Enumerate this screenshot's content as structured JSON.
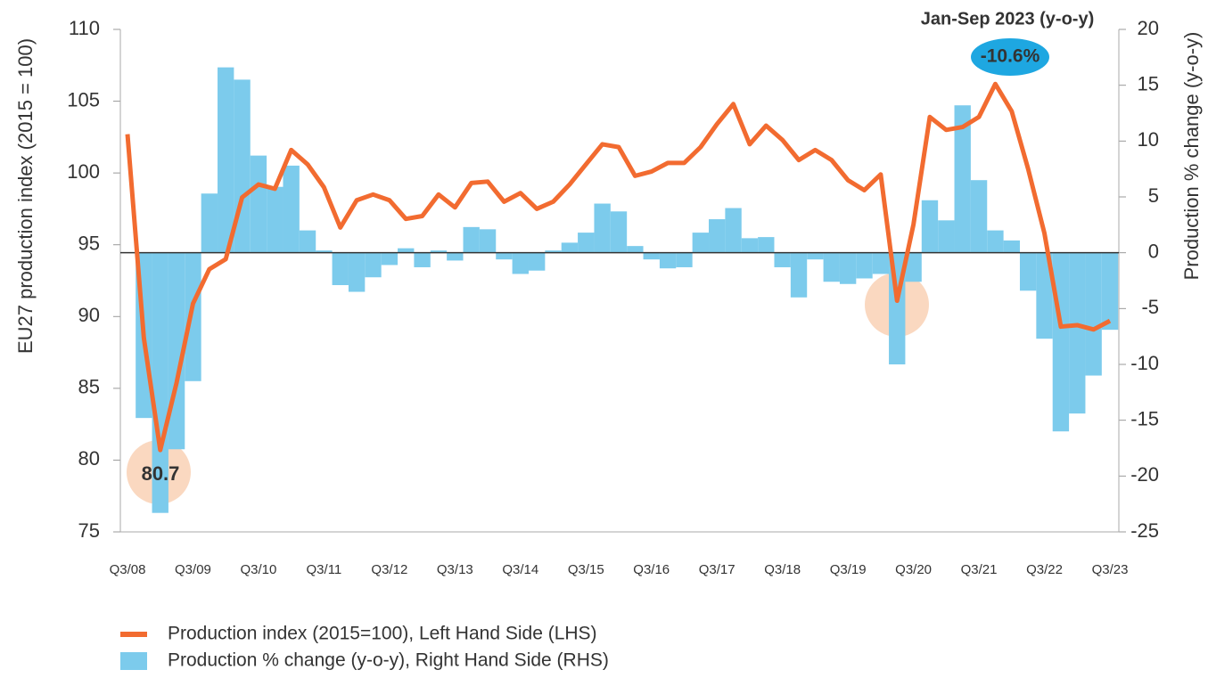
{
  "chart_data": {
    "type": "combo",
    "y_label": "EU27 production index (2015 = 100)",
    "y2_label": "Production % change (y-o-y)",
    "categories": [
      "Q3/08",
      null,
      null,
      null,
      "Q3/09",
      null,
      null,
      null,
      "Q3/10",
      null,
      null,
      null,
      "Q3/11",
      null,
      null,
      null,
      "Q3/12",
      null,
      null,
      null,
      "Q3/13",
      null,
      null,
      null,
      "Q3/14",
      null,
      null,
      null,
      "Q3/15",
      null,
      null,
      null,
      "Q3/16",
      null,
      null,
      null,
      "Q3/17",
      null,
      null,
      null,
      "Q3/18",
      null,
      null,
      null,
      "Q3/19",
      null,
      null,
      null,
      "Q3/20",
      null,
      null,
      null,
      "Q3/21",
      null,
      null,
      null,
      "Q3/22",
      null,
      null,
      null,
      "Q3/23"
    ],
    "series": [
      {
        "name": "Production index (2015=100), Left Hand Side (LHS)",
        "type": "line",
        "color": "#f26b30",
        "values": [
          102.7,
          88.5,
          80.7,
          85.4,
          90.9,
          93.3,
          94.0,
          98.3,
          99.2,
          98.9,
          101.6,
          100.6,
          99.0,
          96.2,
          98.1,
          98.5,
          98.1,
          96.8,
          97.0,
          98.5,
          97.6,
          99.3,
          99.4,
          98.0,
          98.6,
          97.5,
          98.0,
          99.2,
          100.6,
          102.0,
          101.8,
          99.8,
          100.1,
          100.7,
          100.7,
          101.8,
          103.4,
          104.8,
          102.0,
          103.3,
          102.3,
          100.9,
          101.6,
          100.9,
          99.5,
          98.8,
          99.9,
          91.1,
          96.4,
          103.9,
          103.0,
          103.2,
          103.9,
          106.2,
          104.3,
          100.3,
          95.8,
          89.3,
          89.4,
          89.1,
          89.7
        ]
      },
      {
        "name": "Production % change (y-o-y), Right Hand Side (RHS)",
        "type": "bar",
        "axis": "y2",
        "color": "#7ccbec",
        "values": [
          0,
          -14.8,
          -23.3,
          -17.6,
          -11.5,
          5.3,
          16.6,
          15.5,
          8.7,
          5.9,
          7.8,
          2.0,
          0.2,
          -2.9,
          -3.5,
          -2.2,
          -1.1,
          0.4,
          -1.3,
          0.2,
          -0.7,
          2.3,
          2.1,
          -0.6,
          -1.9,
          -1.6,
          0.2,
          0.9,
          1.8,
          4.4,
          3.7,
          0.6,
          -0.6,
          -1.4,
          -1.3,
          1.8,
          3.0,
          4.0,
          1.3,
          1.4,
          -1.3,
          -4.0,
          -0.6,
          -2.6,
          -2.8,
          -2.3,
          -1.9,
          -10.0,
          -2.6,
          4.7,
          2.9,
          13.2,
          6.5,
          2.0,
          1.1,
          -3.4,
          -7.7,
          -16.0,
          -14.4,
          -11.0,
          -6.9
        ]
      }
    ],
    "ylim": [
      75,
      110
    ],
    "yticks": [
      75,
      80,
      85,
      90,
      95,
      100,
      105,
      110
    ],
    "y2lim": [
      -25,
      20
    ],
    "y2ticks": [
      -25,
      -20,
      -15,
      -10,
      -5,
      0,
      5,
      10,
      15,
      20
    ],
    "annotations": [
      "80.7",
      "Jan-Sep 2023 (y-o-y)",
      "-10.6%"
    ]
  }
}
